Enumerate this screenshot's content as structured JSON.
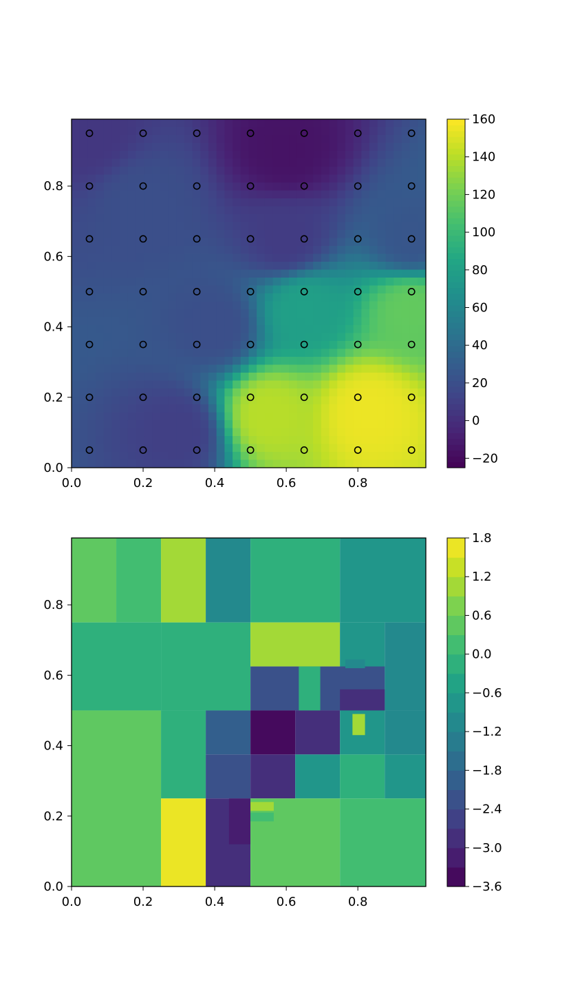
{
  "chart_data": [
    {
      "type": "heatmap",
      "title": "",
      "xlabel": "",
      "ylabel": "",
      "xlim": [
        0,
        0.99
      ],
      "ylim": [
        0,
        0.99
      ],
      "x_ticks": [
        "0.0",
        "0.2",
        "0.4",
        "0.6",
        "0.8"
      ],
      "y_ticks": [
        "0.0",
        "0.2",
        "0.4",
        "0.6",
        "0.8"
      ],
      "colorbar": {
        "min": -25,
        "max": 160,
        "ticks": [
          "160",
          "140",
          "120",
          "100",
          "80",
          "60",
          "40",
          "20",
          "0",
          "−20"
        ],
        "tick_values": [
          160,
          140,
          120,
          100,
          80,
          60,
          40,
          20,
          0,
          -20
        ],
        "colormap": "viridis"
      },
      "sample_points": {
        "x": [
          0.05,
          0.2,
          0.35,
          0.5,
          0.65,
          0.8,
          0.95
        ],
        "y": [
          0.05,
          0.2,
          0.35,
          0.5,
          0.65,
          0.8,
          0.95
        ],
        "marker": "open circle"
      },
      "field_estimates": [
        {
          "x": 0.05,
          "y": 0.95,
          "value": 5
        },
        {
          "x": 0.2,
          "y": 0.75,
          "value": 20
        },
        {
          "x": 0.6,
          "y": 0.9,
          "value": -15
        },
        {
          "x": 0.6,
          "y": 0.65,
          "value": 8
        },
        {
          "x": 0.95,
          "y": 0.65,
          "value": 25
        },
        {
          "x": 0.4,
          "y": 0.4,
          "value": 20
        },
        {
          "x": 0.65,
          "y": 0.45,
          "value": 80
        },
        {
          "x": 0.95,
          "y": 0.45,
          "value": 115
        },
        {
          "x": 0.55,
          "y": 0.15,
          "value": 140
        },
        {
          "x": 0.83,
          "y": 0.16,
          "value": 155
        },
        {
          "x": 0.3,
          "y": 0.1,
          "value": 10
        }
      ]
    },
    {
      "type": "heatmap",
      "title": "",
      "xlabel": "",
      "ylabel": "",
      "xlim": [
        0,
        0.99
      ],
      "ylim": [
        0,
        0.99
      ],
      "x_ticks": [
        "0.0",
        "0.2",
        "0.4",
        "0.6",
        "0.8"
      ],
      "y_ticks": [
        "0.0",
        "0.2",
        "0.4",
        "0.6",
        "0.8"
      ],
      "colorbar": {
        "min": -3.6,
        "max": 1.8,
        "levels": 18,
        "ticks": [
          "1.8",
          "1.2",
          "0.6",
          "0.0",
          "−0.6",
          "−1.2",
          "−1.8",
          "−2.4",
          "−3.0",
          "−3.6"
        ],
        "tick_values": [
          1.8,
          1.2,
          0.6,
          0.0,
          -0.6,
          -1.2,
          -1.8,
          -2.4,
          -3.0,
          -3.6
        ],
        "colormap": "viridis"
      },
      "regions": [
        {
          "x0": 0.0,
          "x1": 0.125,
          "y0": 0.75,
          "y1": 0.99,
          "value": 0.4
        },
        {
          "x0": 0.125,
          "x1": 0.25,
          "y0": 0.75,
          "y1": 0.99,
          "value": 0.2
        },
        {
          "x0": 0.25,
          "x1": 0.375,
          "y0": 0.75,
          "y1": 0.99,
          "value": 1.0
        },
        {
          "x0": 0.375,
          "x1": 0.5,
          "y0": 0.75,
          "y1": 0.99,
          "value": -1.2
        },
        {
          "x0": 0.5,
          "x1": 0.75,
          "y0": 0.75,
          "y1": 0.99,
          "value": -0.1
        },
        {
          "x0": 0.75,
          "x1": 0.99,
          "y0": 0.75,
          "y1": 0.99,
          "value": -0.7
        },
        {
          "x0": 0.0,
          "x1": 0.25,
          "y0": 0.5,
          "y1": 0.75,
          "value": -0.1
        },
        {
          "x0": 0.25,
          "x1": 0.5,
          "y0": 0.5,
          "y1": 0.75,
          "value": -0.2
        },
        {
          "x0": 0.5,
          "x1": 0.75,
          "y0": 0.625,
          "y1": 0.75,
          "value": 1.0
        },
        {
          "x0": 0.75,
          "x1": 0.875,
          "y0": 0.5,
          "y1": 0.75,
          "value": -0.7
        },
        {
          "x0": 0.875,
          "x1": 0.99,
          "y0": 0.5,
          "y1": 0.75,
          "value": -1.0
        },
        {
          "x0": 0.5,
          "x1": 0.875,
          "y0": 0.5,
          "y1": 0.625,
          "value": -2.4
        },
        {
          "x0": 0.75,
          "x1": 0.875,
          "y0": 0.5,
          "y1": 0.56,
          "value": -2.7
        },
        {
          "x0": 0.0,
          "x1": 0.25,
          "y0": 0.0,
          "y1": 0.5,
          "value": 0.6
        },
        {
          "x0": 0.25,
          "x1": 0.375,
          "y0": 0.25,
          "y1": 0.5,
          "value": 0.0
        },
        {
          "x0": 0.375,
          "x1": 0.5,
          "y0": 0.375,
          "y1": 0.5,
          "value": -1.8
        },
        {
          "x0": 0.375,
          "x1": 0.5,
          "y0": 0.25,
          "y1": 0.375,
          "value": -2.1
        },
        {
          "x0": 0.5,
          "x1": 0.625,
          "y0": 0.375,
          "y1": 0.5,
          "value": -3.6
        },
        {
          "x0": 0.625,
          "x1": 0.75,
          "y0": 0.375,
          "y1": 0.5,
          "value": -3.0
        },
        {
          "x0": 0.75,
          "x1": 0.875,
          "y0": 0.375,
          "y1": 0.5,
          "value": -0.6
        },
        {
          "x0": 0.875,
          "x1": 0.99,
          "y0": 0.375,
          "y1": 0.5,
          "value": -1.2
        },
        {
          "x0": 0.5,
          "x1": 0.625,
          "y0": 0.25,
          "y1": 0.375,
          "value": -2.9
        },
        {
          "x0": 0.625,
          "x1": 0.75,
          "y0": 0.25,
          "y1": 0.375,
          "value": -0.9
        },
        {
          "x0": 0.75,
          "x1": 0.875,
          "y0": 0.25,
          "y1": 0.375,
          "value": -0.1
        },
        {
          "x0": 0.875,
          "x1": 0.99,
          "y0": 0.25,
          "y1": 0.375,
          "value": -0.7
        },
        {
          "x0": 0.25,
          "x1": 0.375,
          "y0": 0.0,
          "y1": 0.25,
          "value": 1.8
        },
        {
          "x0": 0.375,
          "x1": 0.5,
          "y0": 0.0,
          "y1": 0.25,
          "value": -2.9
        },
        {
          "x0": 0.44,
          "x1": 0.5,
          "y0": 0.12,
          "y1": 0.25,
          "value": -3.3
        },
        {
          "x0": 0.5,
          "x1": 0.75,
          "y0": 0.0,
          "y1": 0.25,
          "value": 0.6
        },
        {
          "x0": 0.75,
          "x1": 0.99,
          "y0": 0.0,
          "y1": 0.25,
          "value": 0.1
        },
        {
          "x0": 0.785,
          "x1": 0.82,
          "y0": 0.43,
          "y1": 0.49,
          "value": 1.0
        },
        {
          "x0": 0.5,
          "x1": 0.565,
          "y0": 0.215,
          "y1": 0.24,
          "value": 1.0
        },
        {
          "x0": 0.5,
          "x1": 0.565,
          "y0": 0.185,
          "y1": 0.21,
          "value": 0.2
        },
        {
          "x0": 0.635,
          "x1": 0.695,
          "y0": 0.5,
          "y1": 0.625,
          "value": -0.2
        },
        {
          "x0": 0.765,
          "x1": 0.82,
          "y0": 0.62,
          "y1": 0.645,
          "value": -1.1
        }
      ]
    }
  ]
}
